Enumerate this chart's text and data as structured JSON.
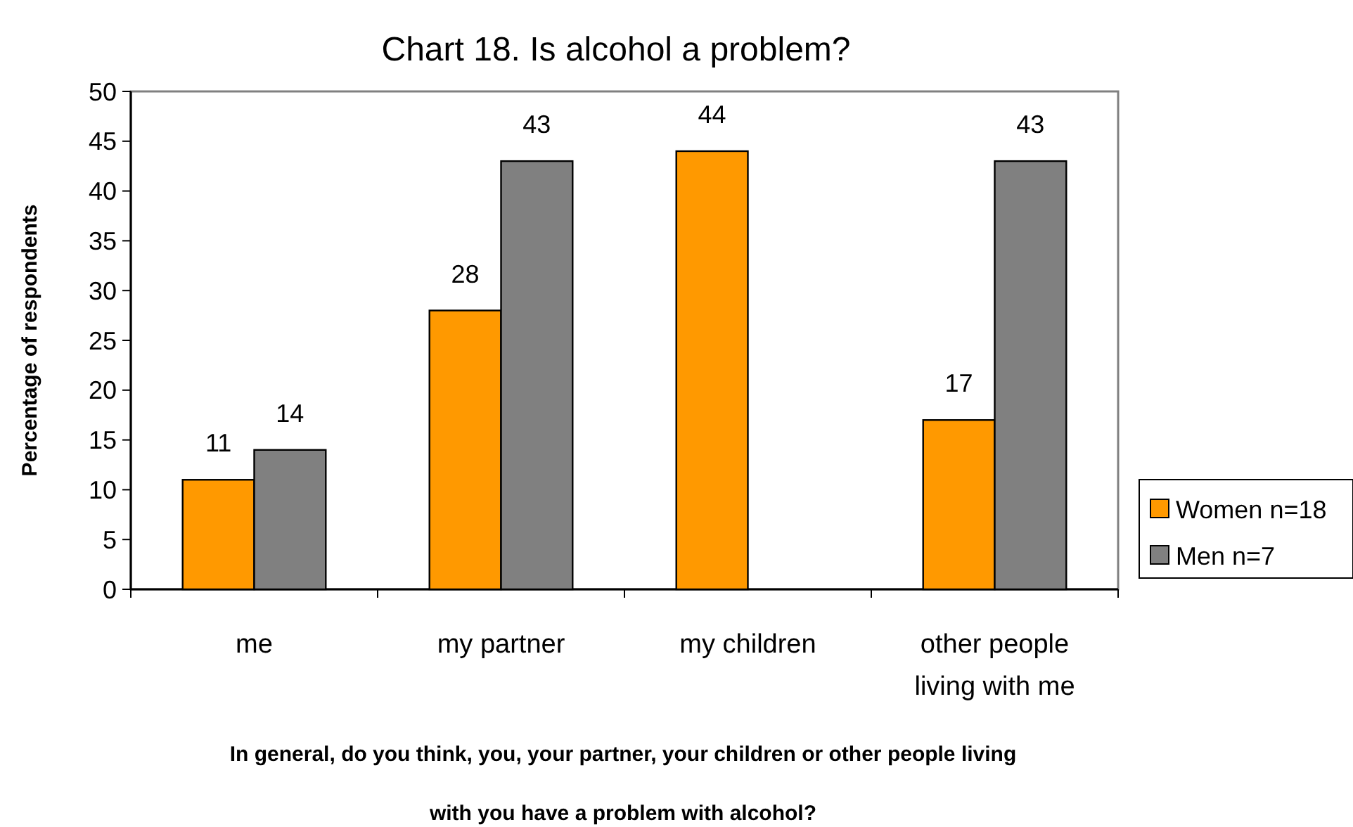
{
  "chart_data": {
    "type": "bar",
    "title": "Chart 18.  Is alcohol a problem?",
    "xlabel": "In general, do you think, you, your partner, your children or other people living with you have a problem with alcohol?",
    "ylabel": "Percentage of respondents",
    "categories": [
      "me",
      "my partner",
      "my children",
      "other people living with me"
    ],
    "series": [
      {
        "name": "Women n=18",
        "color": "#ff9900",
        "values": [
          11,
          28,
          44,
          17
        ]
      },
      {
        "name": "Men n=7",
        "color": "#808080",
        "values": [
          14,
          43,
          null,
          43
        ]
      }
    ],
    "ylim": [
      0,
      50
    ],
    "yticks": [
      0,
      5,
      10,
      15,
      20,
      25,
      30,
      35,
      40,
      45,
      50
    ],
    "grid": false,
    "legend": "right",
    "data_labels": true
  }
}
